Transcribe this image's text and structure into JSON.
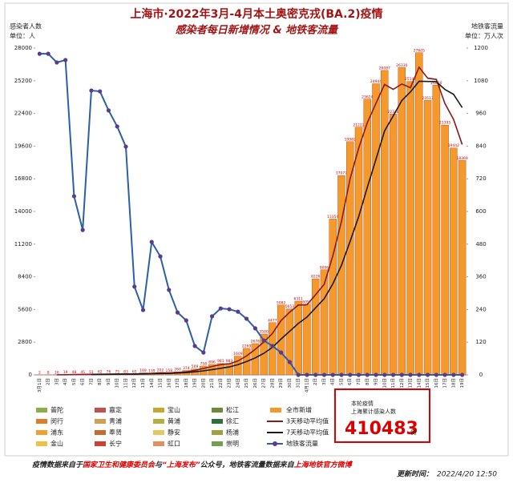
{
  "chart_data": {
    "type": "bar",
    "title": "上海市·2022年3月-4月本土奥密克戎(BA.2)疫情",
    "subtitle": "感染者每日新增情况 & 地铁客流量",
    "y_label": "感染者人数",
    "y_unit": "单位：人",
    "y2_label": "地铁客流量",
    "y2_unit": "单位：万人次",
    "grid": false,
    "categories": [
      "3月1日",
      "2日",
      "3日",
      "4日",
      "5日",
      "6日",
      "7日",
      "8日",
      "9日",
      "10日",
      "11日",
      "12日",
      "13日",
      "14日",
      "15日",
      "16日",
      "17日",
      "18日",
      "19日",
      "20日",
      "21日",
      "22日",
      "23日",
      "24日",
      "25日",
      "26日",
      "27日",
      "28日",
      "29日",
      "30日",
      "31日",
      "4月1日",
      "2日",
      "3日",
      "4日",
      "5日",
      "6日",
      "7日",
      "8日",
      "9日",
      "10日",
      "11日",
      "12日",
      "13日",
      "14日",
      "15日",
      "16日",
      "17日",
      "18日",
      "19日"
    ],
    "ylim": [
      0,
      28000
    ],
    "yticks": [
      0,
      2800,
      5600,
      8400,
      11200,
      14000,
      16800,
      19600,
      22400,
      25200,
      28000
    ],
    "y2lim": [
      0,
      1200
    ],
    "y2ticks": [
      0,
      120,
      240,
      360,
      480,
      600,
      720,
      840,
      960,
      1080,
      1200
    ],
    "series": [
      {
        "name": "全市新增",
        "mark": "bar",
        "color": "#f39a2b",
        "data_labels": true,
        "values": [
          2,
          8,
          16,
          19,
          48,
          45,
          51,
          62,
          76,
          75,
          83,
          65,
          169,
          139,
          202,
          158,
          260,
          374,
          509,
          758,
          896,
          981,
          983,
          1609,
          2269,
          2676,
          3500,
          4477,
          5982,
          5653,
          6311,
          6051,
          8226,
          9006,
          13354,
          17077,
          19982,
          21222,
          23624,
          24944,
          26087,
          22348,
          26330,
          25146,
          27605,
          23513,
          24820,
          21395,
          19442,
          18369
        ]
      },
      {
        "name": "3天移动平均值",
        "mark": "line",
        "color": "#8b1a1a",
        "values": [
          null,
          null,
          9,
          14,
          28,
          37,
          48,
          53,
          63,
          71,
          78,
          74,
          106,
          124,
          170,
          166,
          207,
          264,
          381,
          547,
          721,
          878,
          953,
          1191,
          1620,
          2185,
          2815,
          3551,
          4653,
          5371,
          5982,
          6005,
          6863,
          7761,
          10195,
          13146,
          16804,
          19427,
          21609,
          23263,
          24885,
          24460,
          24922,
          24608,
          26360,
          25421,
          25313,
          23243,
          21886,
          19735
        ]
      },
      {
        "name": "7天移动平均值",
        "mark": "line",
        "color": "#1a1a1a",
        "values": [
          null,
          null,
          null,
          null,
          null,
          null,
          27,
          36,
          45,
          54,
          63,
          65,
          83,
          96,
          116,
          127,
          154,
          195,
          259,
          343,
          451,
          562,
          680,
          873,
          1144,
          1453,
          1845,
          2356,
          3071,
          3738,
          4410,
          4950,
          5743,
          6529,
          7798,
          9383,
          11430,
          13560,
          16070,
          18458,
          20899,
          22183,
          23505,
          24243,
          25155,
          25139,
          25121,
          24451,
          24036,
          22899
        ]
      },
      {
        "name": "地铁客流量",
        "mark": "line",
        "axis": "y2",
        "color": "#2b5fa8",
        "marker_color": "#5a3b8c",
        "values": [
          1179,
          1179,
          1147,
          1156,
          656,
          532,
          1044,
          1041,
          971,
          912,
          838,
          324,
          238,
          488,
          435,
          312,
          229,
          200,
          106,
          82,
          215,
          244,
          241,
          232,
          206,
          171,
          126,
          106,
          82,
          47,
          0,
          0,
          0,
          0,
          0,
          0,
          0,
          0,
          0,
          0,
          0,
          0,
          0,
          0,
          0,
          0,
          0,
          0,
          0,
          0
        ]
      }
    ],
    "district_legend": [
      {
        "name": "普陀",
        "color": "#8bb04a"
      },
      {
        "name": "嘉定",
        "color": "#c0504d"
      },
      {
        "name": "宝山",
        "color": "#c8a632"
      },
      {
        "name": "松江",
        "color": "#6d8a3a"
      },
      {
        "name": "闵行",
        "color": "#e07b2a"
      },
      {
        "name": "青浦",
        "color": "#d0a050"
      },
      {
        "name": "黄浦",
        "color": "#b5b03e"
      },
      {
        "name": "徐汇",
        "color": "#2e6f3e"
      },
      {
        "name": "浦东",
        "color": "#f0a030"
      },
      {
        "name": "奉贤",
        "color": "#c86a30"
      },
      {
        "name": "静安",
        "color": "#e6c860"
      },
      {
        "name": "杨浦",
        "color": "#a0a040"
      },
      {
        "name": "金山",
        "color": "#f0c040"
      },
      {
        "name": "长宁",
        "color": "#d04030"
      },
      {
        "name": "虹口",
        "color": "#e09060"
      },
      {
        "name": "崇明",
        "color": "#70a050"
      }
    ]
  },
  "annotation": {
    "line1": "本轮疫情",
    "line2": "上海累计感染人数",
    "number": "410483",
    "unit": "例"
  },
  "footer": {
    "parts": [
      {
        "text": "疫情数据来自于",
        "highlight": false
      },
      {
        "text": "国家卫生和健康委员会",
        "highlight": true
      },
      {
        "text": "与",
        "highlight": false
      },
      {
        "text": "“上海发布”",
        "highlight": true
      },
      {
        "text": "公众号，地铁客流量数据来自",
        "highlight": false
      },
      {
        "text": "上海地铁官方微博",
        "highlight": true
      }
    ],
    "update_label": "更新时间：",
    "update_time": "2022/4/20 12:50"
  }
}
